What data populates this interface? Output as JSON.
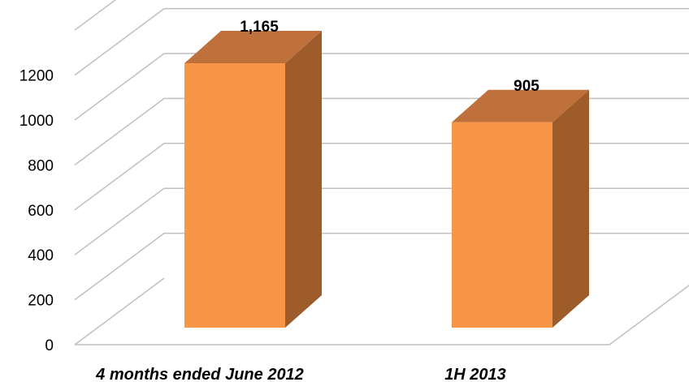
{
  "chart_data": {
    "type": "bar",
    "categories": [
      "4 months ended June 2012",
      "1H 2013"
    ],
    "values": [
      1165,
      905
    ],
    "data_labels": [
      "1,165",
      "905"
    ],
    "y_ticks": [
      "0",
      "200",
      "400",
      "600",
      "800",
      "1000",
      "1200"
    ],
    "ylim": [
      0,
      1400
    ],
    "grid": true,
    "three_d": true,
    "colors": {
      "bar_front": "#F79646",
      "bar_side": "#9E5C2B",
      "bar_top": "#C0703A",
      "grid": "#BFBFBF"
    }
  }
}
